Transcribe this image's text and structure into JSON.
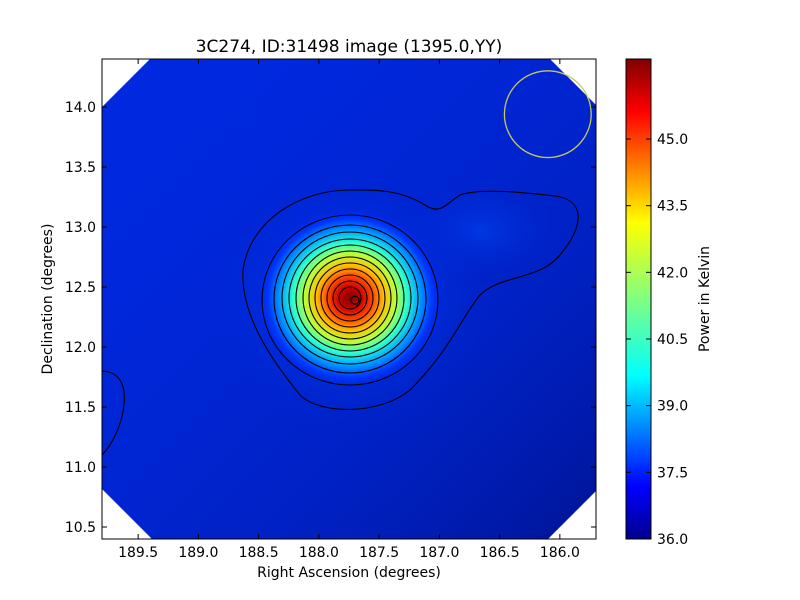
{
  "chart_data": {
    "type": "heatmap",
    "title": "3C274, ID:31498 image (1395.0,YY)",
    "xlabel": "Right Ascension (degrees)",
    "ylabel": "Declination (degrees)",
    "x_range": [
      189.8,
      185.7
    ],
    "y_range": [
      10.4,
      14.4
    ],
    "x_inverted": true,
    "x_ticks": [
      {
        "value": 189.5,
        "label": "189.5"
      },
      {
        "value": 189.0,
        "label": "189.0"
      },
      {
        "value": 188.5,
        "label": "188.5"
      },
      {
        "value": 188.0,
        "label": "188.0"
      },
      {
        "value": 187.5,
        "label": "187.5"
      },
      {
        "value": 187.0,
        "label": "187.0"
      },
      {
        "value": 186.5,
        "label": "186.5"
      },
      {
        "value": 186.0,
        "label": "186.0"
      }
    ],
    "y_ticks": [
      {
        "value": 10.5,
        "label": "10.5"
      },
      {
        "value": 11.0,
        "label": "11.0"
      },
      {
        "value": 11.5,
        "label": "11.5"
      },
      {
        "value": 12.0,
        "label": "12.0"
      },
      {
        "value": 12.5,
        "label": "12.5"
      },
      {
        "value": 13.0,
        "label": "13.0"
      },
      {
        "value": 13.5,
        "label": "13.5"
      },
      {
        "value": 14.0,
        "label": "14.0"
      }
    ],
    "colorbar": {
      "label": "Power in Kelvin",
      "range": [
        36.0,
        46.8
      ],
      "ticks": [
        {
          "value": 36.0,
          "label": "36.0"
        },
        {
          "value": 37.5,
          "label": "37.5"
        },
        {
          "value": 39.0,
          "label": "39.0"
        },
        {
          "value": 40.5,
          "label": "40.5"
        },
        {
          "value": 42.0,
          "label": "42.0"
        },
        {
          "value": 43.5,
          "label": "43.5"
        },
        {
          "value": 45.0,
          "label": "45.0"
        }
      ],
      "colormap": "jet"
    },
    "source": {
      "ra": 187.7,
      "dec": 12.39,
      "peak_power": 46.8,
      "marker": "circle"
    },
    "beam_circle": {
      "ra": 186.1,
      "dec": 13.94,
      "radius_deg": 0.36,
      "color": "#c8c85a"
    },
    "contours": {
      "count": 14,
      "color": "#000000",
      "note_levels_shown": "nested black contours around the peak, plus an extension toward upper-right and a partial contour at the left edge"
    },
    "grid": false,
    "legend": "colorbar-right"
  }
}
